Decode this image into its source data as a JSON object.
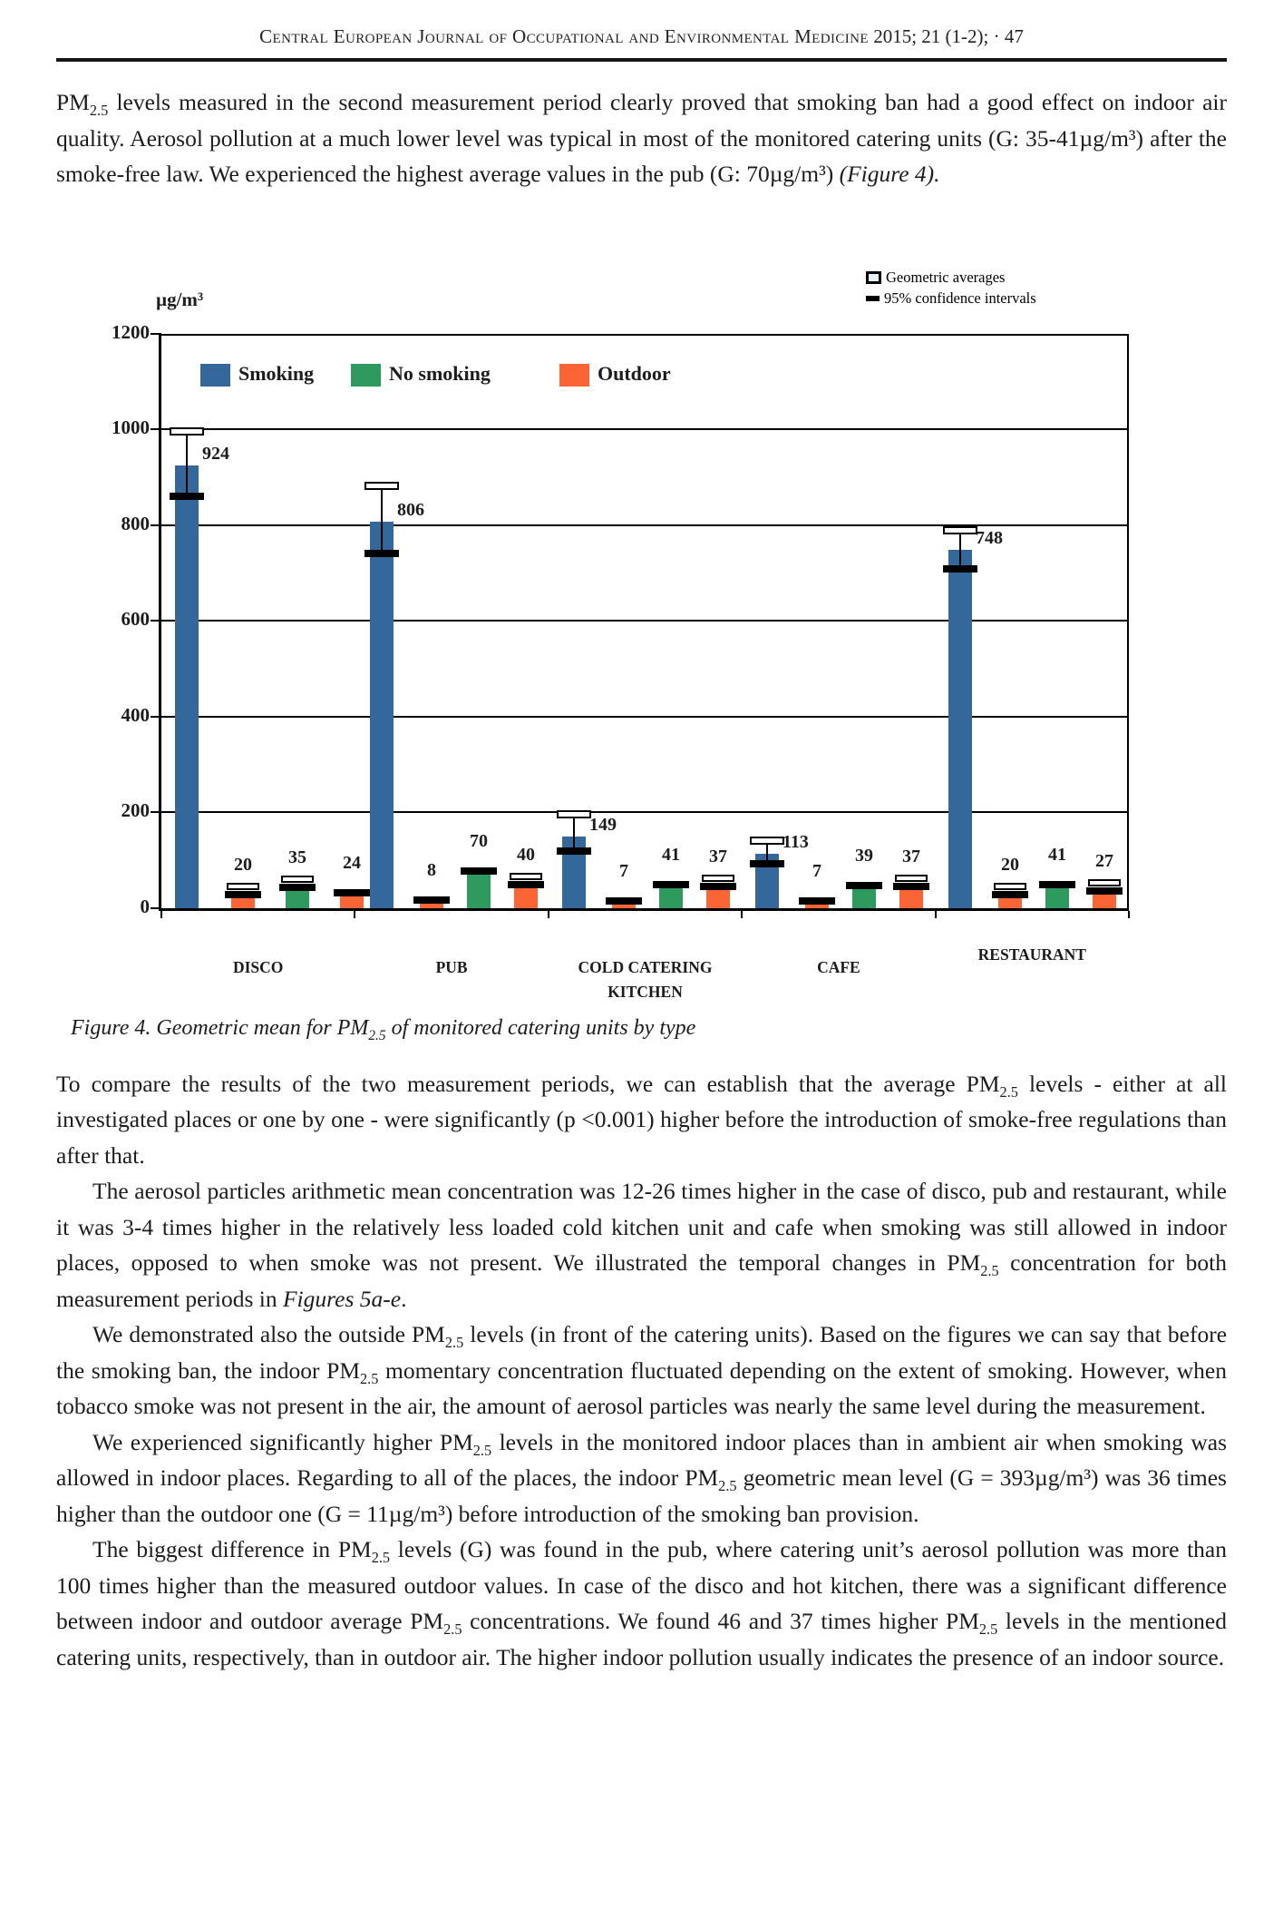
{
  "header": {
    "journal": "Central European Journal of Occupational and Environmental Medicine",
    "issue": " 2015; 21 (1-2); · 47"
  },
  "paragraphs": {
    "p1": [
      {
        "t": "PM"
      },
      {
        "t": "2.5",
        "sub": true
      },
      {
        "t": " levels measured in the second measurement period clearly proved that smoking ban had a good effect on indoor air quality. Aerosol pollution at a much lower level was typical in most of the monitored catering units (G: 35-41µg/m³) after the smoke-free law. We experienced the highest average values in the pub (G: 70µg/m³) "
      },
      {
        "t": "(Figure 4).",
        "i": true
      }
    ],
    "p2": [
      {
        "t": "To compare the results of the two measurement periods, we can establish that the average PM"
      },
      {
        "t": "2.5",
        "sub": true
      },
      {
        "t": " levels - either at all investigated places or one by one - were significantly (p <0.001) higher before the introduction of smoke-free regulations than after that."
      }
    ],
    "p3": [
      {
        "t": "The aerosol particles arithmetic mean concentration was 12-26 times higher in the case of disco, pub and restaurant, while it was 3-4 times higher in the relatively less loaded cold kitchen unit and cafe when smoking was still allowed in indoor places, opposed to when smoke was not present. We illustrated the temporal changes in PM"
      },
      {
        "t": "2.5",
        "sub": true
      },
      {
        "t": " concentration for both measurement periods in "
      },
      {
        "t": "Figures 5a-e",
        "i": true
      },
      {
        "t": "."
      }
    ],
    "p4": [
      {
        "t": "We demonstrated also the outside PM"
      },
      {
        "t": "2.5",
        "sub": true
      },
      {
        "t": " levels (in front of the catering units). Based on the figures we can say that before the smoking ban, the indoor PM"
      },
      {
        "t": "2.5",
        "sub": true
      },
      {
        "t": " momentary concentration fluctuated depending on the extent of smoking. However, when tobacco smoke was not present in the air, the amount of aerosol particles was nearly the same level during the measurement."
      }
    ],
    "p5": [
      {
        "t": "We experienced significantly higher PM"
      },
      {
        "t": "2.5",
        "sub": true
      },
      {
        "t": " levels in the monitored indoor places than in ambient air when smoking was allowed in indoor places. Regarding to all of the places, the indoor PM"
      },
      {
        "t": "2.5",
        "sub": true
      },
      {
        "t": " geometric mean level (G = 393µg/m³) was 36 times higher than the outdoor one (G = 11µg/m³) before introduction of the smoking ban provision."
      }
    ],
    "p6": [
      {
        "t": "The biggest difference in PM"
      },
      {
        "t": "2.5",
        "sub": true
      },
      {
        "t": " levels (G) was found in the pub, where catering unit’s aerosol pollution was more than 100 times higher than the measured outdoor values. In case of the disco and hot kitchen, there was a significant difference between indoor and outdoor average PM"
      },
      {
        "t": "2.5",
        "sub": true
      },
      {
        "t": " concentrations. We found 46 and 37 times higher PM"
      },
      {
        "t": "2.5",
        "sub": true
      },
      {
        "t": " levels in the mentioned catering units, respectively, than in outdoor air. The higher indoor pollution usually indicates the presence of an indoor source."
      }
    ]
  },
  "figure_caption": [
    {
      "t": "Figure 4. Geometric mean for PM",
      "i": true
    },
    {
      "t": "2.5",
      "sub": true,
      "i": true
    },
    {
      "t": " of monitored catering units by type",
      "i": true
    }
  ],
  "chart_data": {
    "type": "bar",
    "title": "",
    "xlabel": "",
    "ylabel": "µg/m³",
    "ylim": [
      0,
      1200
    ],
    "yticks": [
      0,
      200,
      400,
      600,
      800,
      1000,
      1200
    ],
    "grid": true,
    "legend_position": "top-inside",
    "series_legend": [
      {
        "label": "Smoking",
        "color": "#34689B"
      },
      {
        "label": "No smoking",
        "color": "#2F9A5E"
      },
      {
        "label": "Outdoor",
        "color": "#FB6435"
      }
    ],
    "series_colors": {
      "Smoking": "#34689B",
      "No smoking": "#2F9A5E",
      "Outdoor": "#FB6435"
    },
    "marker_legend": [
      {
        "label": "Geometric averages",
        "type": "open-square"
      },
      {
        "label": "95% confidence intervals",
        "type": "solid-bar"
      }
    ],
    "categories": [
      "DISCO",
      "PUB",
      "COLD CATERING KITCHEN",
      "CAFE",
      "RESTAURANT"
    ],
    "groups": [
      {
        "category": "DISCO",
        "bars": [
          {
            "series": "Smoking",
            "value": 924,
            "ci_low": 860,
            "ci_high": 995
          },
          {
            "series": "Outdoor",
            "value": 20,
            "marker": "open"
          },
          {
            "series": "No smoking",
            "value": 35,
            "marker": "open"
          },
          {
            "series": "Outdoor",
            "value": 24,
            "marker": "solid"
          }
        ]
      },
      {
        "category": "PUB",
        "bars": [
          {
            "series": "Smoking",
            "value": 806,
            "ci_low": 740,
            "ci_high": 880
          },
          {
            "series": "Outdoor",
            "value": 8,
            "marker": "solid"
          },
          {
            "series": "No smoking",
            "value": 70,
            "marker": "solid"
          },
          {
            "series": "Outdoor",
            "value": 40,
            "marker": "open"
          }
        ]
      },
      {
        "category": "COLD CATERING KITCHEN",
        "bars": [
          {
            "series": "Smoking",
            "value": 149,
            "ci_low": 118,
            "ci_high": 195
          },
          {
            "series": "Outdoor",
            "value": 7,
            "marker": "solid"
          },
          {
            "series": "No smoking",
            "value": 41,
            "marker": "solid"
          },
          {
            "series": "Outdoor",
            "value": 37,
            "marker": "open"
          }
        ]
      },
      {
        "category": "CAFE",
        "bars": [
          {
            "series": "Smoking",
            "value": 113,
            "ci_low": 92,
            "ci_high": 140
          },
          {
            "series": "Outdoor",
            "value": 7,
            "marker": "solid"
          },
          {
            "series": "No smoking",
            "value": 39,
            "marker": "solid"
          },
          {
            "series": "Outdoor",
            "value": 37,
            "marker": "open"
          }
        ]
      },
      {
        "category": "RESTAURANT",
        "bars": [
          {
            "series": "Smoking",
            "value": 748,
            "ci_low": 708,
            "ci_high": 787
          },
          {
            "series": "Outdoor",
            "value": 20,
            "marker": "open"
          },
          {
            "series": "No smoking",
            "value": 41,
            "marker": "solid"
          },
          {
            "series": "Outdoor",
            "value": 27,
            "marker": "open"
          }
        ]
      }
    ]
  }
}
